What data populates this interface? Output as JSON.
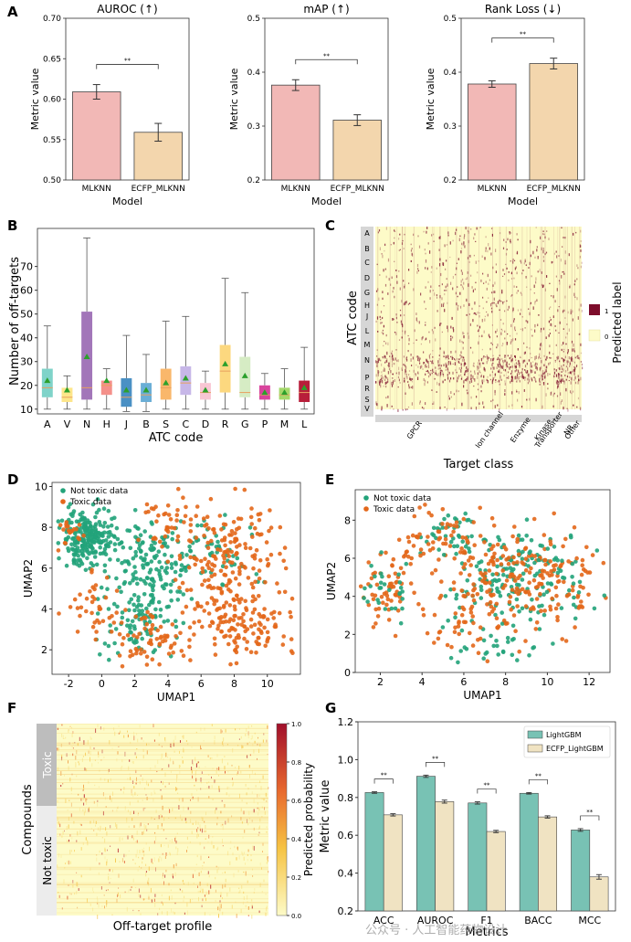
{
  "figure": {
    "panels": [
      "A",
      "B",
      "C",
      "D",
      "E",
      "F",
      "G"
    ]
  },
  "chart_data": [
    {
      "id": "A1",
      "type": "bar",
      "title": "AUROC (↑)",
      "xlabel": "Model",
      "ylabel": "Metric value",
      "categories": [
        "MLKNN",
        "ECFP_MLKNN"
      ],
      "values": [
        0.609,
        0.559
      ],
      "errors": [
        0.009,
        0.011
      ],
      "colors": [
        "#f2b8b6",
        "#f3d6ad"
      ],
      "ylim": [
        0.5,
        0.7
      ],
      "yticks": [
        "0.50",
        "0.55",
        "0.60",
        "0.65",
        "0.70"
      ],
      "significance": "**"
    },
    {
      "id": "A2",
      "type": "bar",
      "title": "mAP (↑)",
      "xlabel": "Model",
      "ylabel": "Metric value",
      "categories": [
        "MLKNN",
        "ECFP_MLKNN"
      ],
      "values": [
        0.376,
        0.311
      ],
      "errors": [
        0.01,
        0.01
      ],
      "colors": [
        "#f2b8b6",
        "#f3d6ad"
      ],
      "ylim": [
        0.2,
        0.5
      ],
      "yticks": [
        "0.2",
        "0.3",
        "0.4",
        "0.5"
      ],
      "significance": "**"
    },
    {
      "id": "A3",
      "type": "bar",
      "title": "Rank Loss (↓)",
      "xlabel": "Model",
      "ylabel": "Metric value",
      "categories": [
        "MLKNN",
        "ECFP_MLKNN"
      ],
      "values": [
        0.378,
        0.416
      ],
      "errors": [
        0.006,
        0.01
      ],
      "colors": [
        "#f2b8b6",
        "#f3d6ad"
      ],
      "ylim": [
        0.2,
        0.5
      ],
      "yticks": [
        "0.2",
        "0.3",
        "0.4",
        "0.5"
      ],
      "significance": "**"
    },
    {
      "id": "B",
      "type": "box",
      "xlabel": "ATC code",
      "ylabel": "Number of off-targets",
      "categories": [
        "A",
        "V",
        "N",
        "H",
        "J",
        "B",
        "S",
        "C",
        "D",
        "R",
        "G",
        "P",
        "M",
        "L"
      ],
      "boxes": [
        {
          "min": 10,
          "q1": 15,
          "median": 19,
          "q3": 27,
          "max": 45,
          "mean": 22,
          "color": "#7fd3c9"
        },
        {
          "min": 10,
          "q1": 13,
          "median": 15,
          "q3": 19,
          "max": 24,
          "mean": 18,
          "color": "#fde68a"
        },
        {
          "min": 10,
          "q1": 14,
          "median": 19,
          "q3": 51,
          "max": 82,
          "mean": 32,
          "color": "#a276b9"
        },
        {
          "min": 10,
          "q1": 16,
          "median": 20,
          "q3": 22,
          "max": 27,
          "mean": 22,
          "color": "#f4908a"
        },
        {
          "min": 9,
          "q1": 11,
          "median": 15,
          "q3": 23,
          "max": 41,
          "mean": 18,
          "color": "#4a90c4"
        },
        {
          "min": 9,
          "q1": 13,
          "median": 16,
          "q3": 21,
          "max": 33,
          "mean": 18,
          "color": "#6aaed6"
        },
        {
          "min": 10,
          "q1": 14,
          "median": 19,
          "q3": 27,
          "max": 47,
          "mean": 21,
          "color": "#f9b76b"
        },
        {
          "min": 10,
          "q1": 16,
          "median": 21,
          "q3": 28,
          "max": 49,
          "mean": 23,
          "color": "#c7b7e8"
        },
        {
          "min": 10,
          "q1": 14,
          "median": 17,
          "q3": 21,
          "max": 26,
          "mean": 18,
          "color": "#f9c6d3"
        },
        {
          "min": 10,
          "q1": 17,
          "median": 26,
          "q3": 37,
          "max": 65,
          "mean": 29,
          "color": "#fcd87f"
        },
        {
          "min": 10,
          "q1": 15,
          "median": 17,
          "q3": 32,
          "max": 59,
          "mean": 24,
          "color": "#d6ecc4"
        },
        {
          "min": 10,
          "q1": 14,
          "median": 16,
          "q3": 20,
          "max": 25,
          "mean": 17,
          "color": "#d9449d"
        },
        {
          "min": 10,
          "q1": 14,
          "median": 16,
          "q3": 19,
          "max": 27,
          "mean": 17,
          "color": "#a5d86a"
        },
        {
          "min": 10,
          "q1": 13,
          "median": 17,
          "q3": 22,
          "max": 36,
          "mean": 19,
          "color": "#b81e3a"
        }
      ],
      "ylim": [
        8,
        86
      ],
      "yticks": [
        10,
        20,
        30,
        40,
        50,
        60,
        70
      ]
    },
    {
      "id": "C",
      "type": "heatmap",
      "xlabel": "Target class",
      "ylabel": "ATC code",
      "row_groups": [
        "A",
        "B",
        "C",
        "D",
        "G",
        "H",
        "J",
        "L",
        "M",
        "N",
        "P",
        "R",
        "S",
        "V"
      ],
      "col_groups": [
        "GPCR",
        "Ion channel",
        "Enzyme",
        "Kinase",
        "Transporter",
        "NR",
        "Other"
      ],
      "colorbar_label": "Predicted label",
      "colorbar_ticks": [
        "1",
        "0"
      ],
      "colors": [
        "#fdfbc8",
        "#7d0d2b"
      ]
    },
    {
      "id": "D",
      "type": "scatter",
      "xlabel": "UMAP1",
      "ylabel": "UMAP2",
      "legend": [
        "Not toxic data",
        "Toxic data"
      ],
      "colors": [
        "#22a37a",
        "#e3671a"
      ],
      "xlim": [
        -3,
        12
      ],
      "ylim": [
        0.8,
        10.2
      ],
      "xticks": [
        -2,
        0,
        2,
        4,
        6,
        8,
        10
      ],
      "yticks": [
        2,
        4,
        6,
        8,
        10
      ]
    },
    {
      "id": "E",
      "type": "scatter",
      "xlabel": "UMAP1",
      "ylabel": "UMAP2",
      "legend": [
        "Not toxic data",
        "Toxic data"
      ],
      "colors": [
        "#22a37a",
        "#e3671a"
      ],
      "xlim": [
        0.8,
        13
      ],
      "ylim": [
        0,
        9.6
      ],
      "xticks": [
        2,
        4,
        6,
        8,
        10,
        12
      ],
      "yticks": [
        0,
        2,
        4,
        6,
        8
      ]
    },
    {
      "id": "F",
      "type": "heatmap",
      "xlabel": "Off-target profile",
      "ylabel": "Compounds",
      "row_groups": [
        "Toxic",
        "Not toxic"
      ],
      "colorbar_label": "Predicted probability",
      "colorbar_ticks": [
        "1.0",
        "0.8",
        "0.6",
        "0.4",
        "0.2",
        "0.0"
      ],
      "colors": [
        "#fdfbc8",
        "#f6c343",
        "#e8692e",
        "#a10f2b"
      ]
    },
    {
      "id": "G",
      "type": "bar",
      "xlabel": "Metrics",
      "ylabel": "Metric value",
      "categories": [
        "ACC",
        "AUROC",
        "F1",
        "BACC",
        "MCC"
      ],
      "series": [
        {
          "name": "LightGBM",
          "values": [
            0.826,
            0.912,
            0.771,
            0.822,
            0.628
          ],
          "errors": [
            0.004,
            0.006,
            0.006,
            0.004,
            0.007
          ],
          "color": "#78c2b4"
        },
        {
          "name": "ECFP_LightGBM",
          "values": [
            0.708,
            0.778,
            0.62,
            0.697,
            0.38
          ],
          "errors": [
            0.006,
            0.008,
            0.006,
            0.006,
            0.012
          ],
          "color": "#f0e3c2"
        }
      ],
      "ylim": [
        0.2,
        1.2
      ],
      "yticks": [
        "0.2",
        "0.4",
        "0.6",
        "0.8",
        "1.0",
        "1.2"
      ],
      "significance": "**"
    }
  ],
  "watermark": "公众号 · 人工智能药物设计"
}
